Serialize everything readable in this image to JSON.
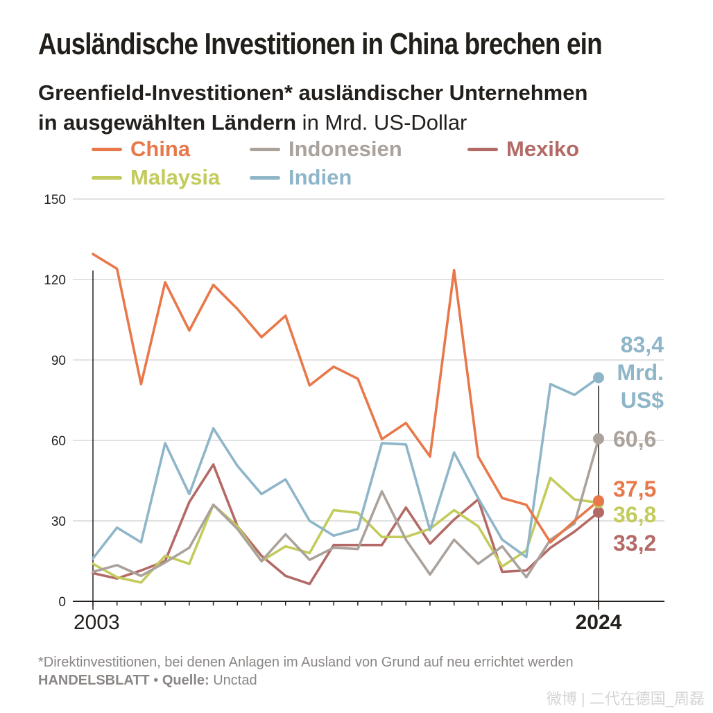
{
  "title": "Ausländische Investitionen in China brechen ein",
  "subtitle": {
    "bold_line1": "Greenfield-Investitionen* ausländischer Unternehmen",
    "bold_line2": "in ausgewählten Ländern",
    "unit": " in Mrd. US-Dollar"
  },
  "colors": {
    "China": "#e8784a",
    "Indonesien": "#aaa29b",
    "Mexiko": "#b36a66",
    "Malaysia": "#c3cb5c",
    "Indien": "#8fb6c8",
    "grid": "#d8d8d8",
    "axis": "#231f1c"
  },
  "chart_data": {
    "type": "line",
    "title": "Greenfield-Investitionen* ausländischer Unternehmen in ausgewählten Ländern",
    "ylabel": "in Mrd. US-Dollar",
    "xlabel": "",
    "ylim": [
      0,
      150
    ],
    "yticks": [
      0,
      30,
      60,
      90,
      120,
      150
    ],
    "x": [
      2003,
      2004,
      2005,
      2006,
      2007,
      2008,
      2009,
      2010,
      2011,
      2012,
      2013,
      2014,
      2015,
      2016,
      2017,
      2018,
      2019,
      2020,
      2021,
      2022,
      2023,
      2024
    ],
    "x_labels": {
      "first": "2003",
      "last": "2024"
    },
    "grid": true,
    "series": [
      {
        "name": "Mexiko",
        "values": [
          10.5,
          8.5,
          11.5,
          15,
          37,
          51,
          28,
          17,
          9.5,
          6.5,
          21,
          21,
          21,
          35,
          21.5,
          30.5,
          38,
          11,
          11.5,
          20,
          26,
          33.2
        ]
      },
      {
        "name": "Malaysia",
        "values": [
          14,
          9,
          7,
          17,
          14,
          36,
          28,
          15,
          20.5,
          18,
          34,
          33,
          24,
          24,
          27,
          34,
          28,
          13,
          19,
          46,
          38,
          36.8
        ]
      },
      {
        "name": "Indonesien",
        "values": [
          11,
          13.5,
          9.5,
          14.5,
          20,
          36,
          27,
          15,
          25,
          15.5,
          20,
          19.5,
          41,
          23,
          10,
          23,
          14,
          20.5,
          9,
          23,
          29,
          60.6
        ]
      },
      {
        "name": "Indien",
        "values": [
          16,
          27.5,
          22,
          59,
          40,
          64.5,
          50.5,
          40,
          45.5,
          30,
          24.5,
          27,
          59,
          58.5,
          26.5,
          55.5,
          38.5,
          23,
          16.5,
          81,
          77,
          83.4
        ]
      },
      {
        "name": "China",
        "values": [
          129.5,
          124,
          81,
          119,
          101,
          118,
          109,
          98.5,
          106.5,
          80.5,
          87.5,
          83,
          60.5,
          66.5,
          54,
          123.5,
          54,
          38.5,
          36,
          22,
          30,
          37.5
        ]
      }
    ],
    "end_labels": [
      {
        "series": "Indien",
        "lines": [
          "83,4",
          "Mrd.",
          "US$"
        ]
      },
      {
        "series": "Indonesien",
        "lines": [
          "60,6"
        ]
      },
      {
        "series": "China",
        "lines": [
          "37,5"
        ]
      },
      {
        "series": "Malaysia",
        "lines": [
          "36,8"
        ]
      },
      {
        "series": "Mexiko",
        "lines": [
          "33,2"
        ]
      }
    ]
  },
  "legend": [
    {
      "label": "China",
      "series": "China"
    },
    {
      "label": "Indonesien",
      "series": "Indonesien"
    },
    {
      "label": "Mexiko",
      "series": "Mexiko"
    },
    {
      "label": "Malaysia",
      "series": "Malaysia"
    },
    {
      "label": "Indien",
      "series": "Indien"
    }
  ],
  "footnote": "*Direktinvestitionen, bei denen Anlagen im Ausland von Grund auf neu errichtet werden",
  "source": {
    "publisher": "HANDELSBLATT",
    "separator": " • ",
    "source_label": "Quelle:",
    "source_value": " Unctad"
  },
  "watermark": "微博 | 二代在德国_周磊"
}
